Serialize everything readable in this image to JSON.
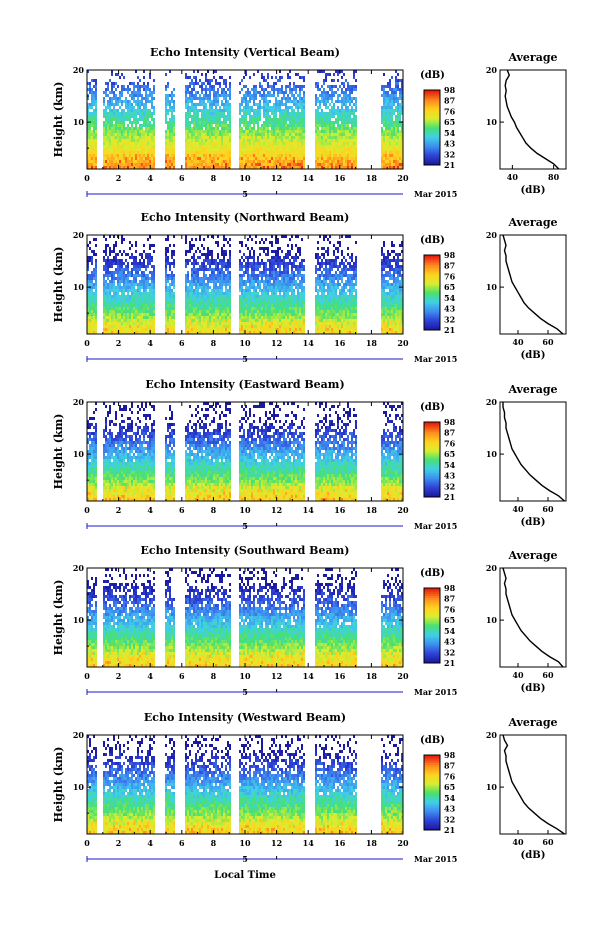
{
  "figure": {
    "panel_titles": [
      "Echo Intensity (Vertical Beam)",
      "Echo Intensity (Northward Beam)",
      "Echo Intensity (Eastward Beam)",
      "Echo Intensity (Southward Beam)",
      "Echo Intensity (Westward Beam)"
    ],
    "ylabel": "Height (km)",
    "xlabel": "Local Time",
    "date_label": "Mar 2015",
    "day_label": "5",
    "x_ticks": [
      "0",
      "2",
      "4",
      "6",
      "8",
      "10",
      "12",
      "14",
      "16",
      "18",
      "20"
    ],
    "y_ticks": [
      "10",
      "20"
    ],
    "colorbar_unit": "(dB)",
    "colorbar_ticks": [
      "21",
      "32",
      "43",
      "54",
      "65",
      "76",
      "87",
      "98"
    ],
    "profile_title": "Average",
    "profile_xlabel": "(dB)",
    "profile_yticks": [
      "10",
      "20"
    ]
  },
  "chart_data": [
    {
      "type": "heatmap",
      "title": "Echo Intensity (Vertical Beam)",
      "xlabel": "Local Time",
      "ylabel": "Height (km)",
      "xlim": [
        0,
        20
      ],
      "ylim": [
        1,
        20
      ],
      "data_gaps_hours": [
        [
          0.6,
          0.9
        ],
        [
          4.3,
          4.9
        ],
        [
          5.5,
          6.1
        ],
        [
          9.0,
          9.5
        ],
        [
          13.7,
          14.4
        ],
        [
          17.0,
          18.5
        ]
      ],
      "colorbar": {
        "label": "(dB)",
        "ticks": [
          21,
          32,
          43,
          54,
          65,
          76,
          87,
          98
        ],
        "range": [
          21,
          98
        ]
      },
      "colormap": [
        "#1a1aa0",
        "#2f43d6",
        "#3f8ff0",
        "#3fd0e8",
        "#48e070",
        "#d8ee30",
        "#ffd21e",
        "#ff8a1e",
        "#e82010"
      ],
      "average_profile": {
        "title": "Average",
        "xlabel": "(dB)",
        "xticks": [
          "40",
          "80"
        ],
        "xlim": [
          28,
          92
        ],
        "height_km": [
          1,
          2,
          3,
          4,
          5,
          6,
          7,
          8,
          9,
          10,
          11,
          12,
          13,
          14,
          15,
          16,
          17,
          18,
          19,
          20
        ],
        "echo_db": [
          85,
          80,
          72,
          64,
          58,
          53,
          50,
          47,
          44,
          42,
          39,
          37,
          35,
          34,
          33,
          34,
          33,
          34,
          37,
          35
        ]
      }
    },
    {
      "type": "heatmap",
      "title": "Echo Intensity (Northward Beam)",
      "xlabel": "Local Time",
      "ylabel": "Height (km)",
      "xlim": [
        0,
        20
      ],
      "ylim": [
        1,
        20
      ],
      "data_gaps_hours": [
        [
          0.6,
          0.9
        ],
        [
          4.3,
          4.9
        ],
        [
          5.5,
          6.1
        ],
        [
          9.0,
          9.5
        ],
        [
          13.7,
          14.4
        ],
        [
          17.0,
          18.5
        ]
      ],
      "colorbar": {
        "label": "(dB)",
        "ticks": [
          21,
          32,
          43,
          54,
          65,
          76,
          87,
          98
        ],
        "range": [
          21,
          98
        ]
      },
      "colormap": [
        "#1a1aa0",
        "#2f43d6",
        "#3f8ff0",
        "#3fd0e8",
        "#48e070",
        "#d8ee30",
        "#ffd21e",
        "#ff8a1e",
        "#e82010"
      ],
      "average_profile": {
        "title": "Average",
        "xlabel": "(dB)",
        "xticks": [
          "40",
          "60"
        ],
        "xlim": [
          28,
          72
        ],
        "height_km": [
          1,
          2,
          3,
          4,
          5,
          6,
          7,
          8,
          9,
          10,
          11,
          12,
          13,
          14,
          15,
          16,
          17,
          18,
          19,
          20
        ],
        "echo_db": [
          70,
          66,
          60,
          55,
          51,
          47,
          44,
          42,
          40,
          38,
          36,
          35,
          34,
          33,
          32,
          32,
          31,
          32,
          31,
          30
        ]
      }
    },
    {
      "type": "heatmap",
      "title": "Echo Intensity (Eastward Beam)",
      "xlabel": "Local Time",
      "ylabel": "Height (km)",
      "xlim": [
        0,
        20
      ],
      "ylim": [
        1,
        20
      ],
      "data_gaps_hours": [
        [
          0.6,
          0.9
        ],
        [
          4.3,
          4.9
        ],
        [
          5.5,
          6.1
        ],
        [
          9.0,
          9.5
        ],
        [
          13.7,
          14.4
        ],
        [
          17.0,
          18.5
        ]
      ],
      "colorbar": {
        "label": "(dB)",
        "ticks": [
          21,
          32,
          43,
          54,
          65,
          76,
          87,
          98
        ],
        "range": [
          21,
          98
        ]
      },
      "colormap": [
        "#1a1aa0",
        "#2f43d6",
        "#3f8ff0",
        "#3fd0e8",
        "#48e070",
        "#d8ee30",
        "#ffd21e",
        "#ff8a1e",
        "#e82010"
      ],
      "average_profile": {
        "title": "Average",
        "xlabel": "(dB)",
        "xticks": [
          "40",
          "60"
        ],
        "xlim": [
          28,
          72
        ],
        "height_km": [
          1,
          2,
          3,
          4,
          5,
          6,
          7,
          8,
          9,
          10,
          11,
          12,
          13,
          14,
          15,
          16,
          17,
          18,
          19,
          20
        ],
        "echo_db": [
          71,
          67,
          61,
          56,
          52,
          48,
          45,
          42,
          40,
          38,
          36,
          35,
          34,
          33,
          32,
          32,
          31,
          31,
          30,
          30
        ]
      }
    },
    {
      "type": "heatmap",
      "title": "Echo Intensity (Southward Beam)",
      "xlabel": "Local Time",
      "ylabel": "Height (km)",
      "xlim": [
        0,
        20
      ],
      "ylim": [
        1,
        20
      ],
      "data_gaps_hours": [
        [
          0.6,
          0.9
        ],
        [
          4.3,
          4.9
        ],
        [
          5.5,
          6.1
        ],
        [
          9.0,
          9.5
        ],
        [
          13.7,
          14.4
        ],
        [
          17.0,
          18.5
        ]
      ],
      "colorbar": {
        "label": "(dB)",
        "ticks": [
          21,
          32,
          43,
          54,
          65,
          76,
          87,
          98
        ],
        "range": [
          21,
          98
        ]
      },
      "colormap": [
        "#1a1aa0",
        "#2f43d6",
        "#3f8ff0",
        "#3fd0e8",
        "#48e070",
        "#d8ee30",
        "#ffd21e",
        "#ff8a1e",
        "#e82010"
      ],
      "average_profile": {
        "title": "Average",
        "xlabel": "(dB)",
        "xticks": [
          "40",
          "60"
        ],
        "xlim": [
          28,
          72
        ],
        "height_km": [
          1,
          2,
          3,
          4,
          5,
          6,
          7,
          8,
          9,
          10,
          11,
          12,
          13,
          14,
          15,
          16,
          17,
          18,
          19,
          20
        ],
        "echo_db": [
          70,
          67,
          61,
          56,
          52,
          48,
          45,
          42,
          40,
          38,
          36,
          35,
          34,
          33,
          32,
          32,
          31,
          32,
          31,
          30
        ]
      }
    },
    {
      "type": "heatmap",
      "title": "Echo Intensity (Westward Beam)",
      "xlabel": "Local Time",
      "ylabel": "Height (km)",
      "xlim": [
        0,
        20
      ],
      "ylim": [
        1,
        20
      ],
      "data_gaps_hours": [
        [
          0.6,
          0.9
        ],
        [
          4.3,
          4.9
        ],
        [
          5.5,
          6.1
        ],
        [
          9.0,
          9.5
        ],
        [
          13.7,
          14.4
        ],
        [
          17.0,
          18.5
        ]
      ],
      "colorbar": {
        "label": "(dB)",
        "ticks": [
          21,
          32,
          43,
          54,
          65,
          76,
          87,
          98
        ],
        "range": [
          21,
          98
        ]
      },
      "colormap": [
        "#1a1aa0",
        "#2f43d6",
        "#3f8ff0",
        "#3fd0e8",
        "#48e070",
        "#d8ee30",
        "#ffd21e",
        "#ff8a1e",
        "#e82010"
      ],
      "average_profile": {
        "title": "Average",
        "xlabel": "(dB)",
        "xticks": [
          "40",
          "60"
        ],
        "xlim": [
          28,
          72
        ],
        "height_km": [
          1,
          2,
          3,
          4,
          5,
          6,
          7,
          8,
          9,
          10,
          11,
          12,
          13,
          14,
          15,
          16,
          17,
          18,
          19,
          20
        ],
        "echo_db": [
          71,
          66,
          60,
          55,
          51,
          47,
          44,
          42,
          40,
          38,
          36,
          35,
          34,
          33,
          32,
          32,
          31,
          33,
          31,
          30
        ]
      }
    }
  ]
}
